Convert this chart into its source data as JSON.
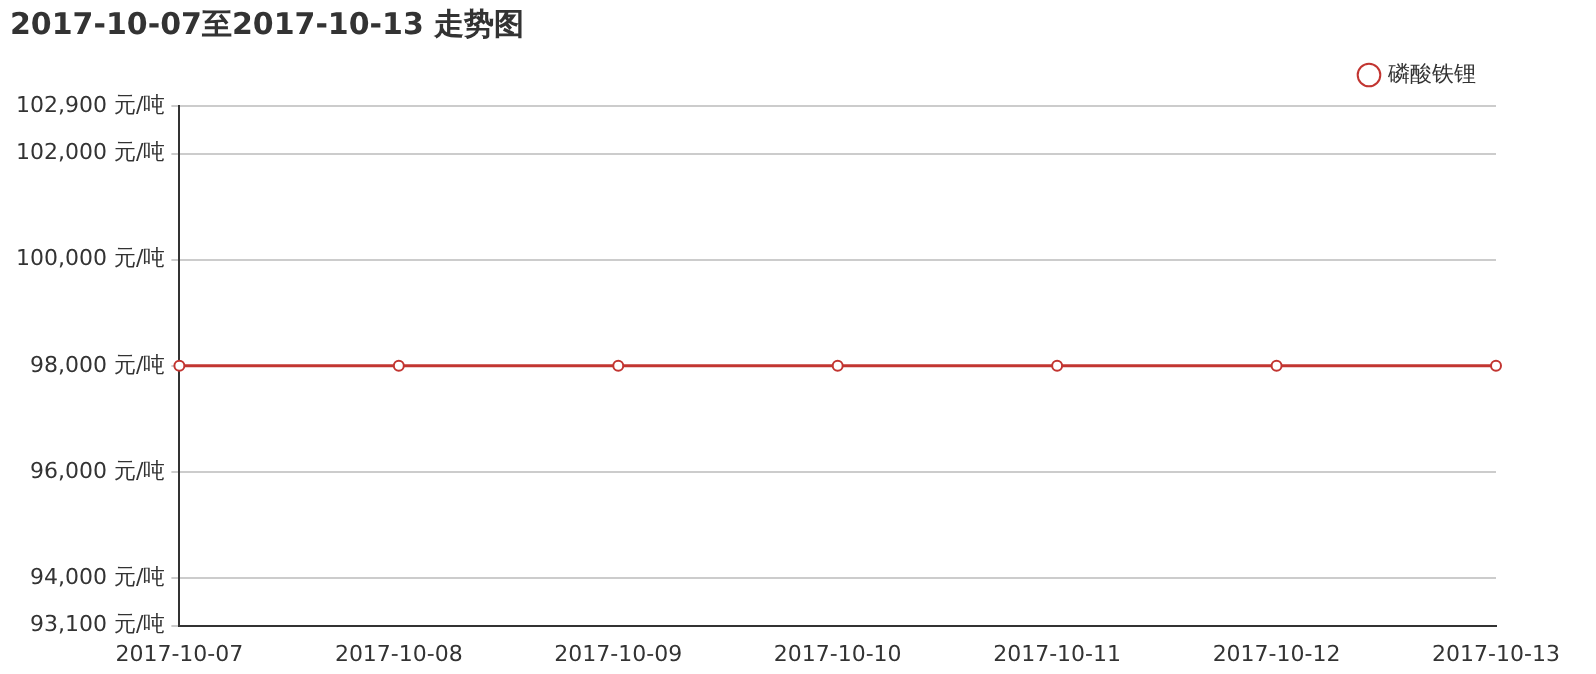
{
  "chart_data": {
    "type": "line",
    "title": "2017-10-07至2017-10-13 走势图",
    "categories": [
      "2017-10-07",
      "2017-10-08",
      "2017-10-09",
      "2017-10-10",
      "2017-10-11",
      "2017-10-12",
      "2017-10-13"
    ],
    "series": [
      {
        "name": "磷酸铁锂",
        "color": "#c23531",
        "values": [
          98000,
          98000,
          98000,
          98000,
          98000,
          98000,
          98000
        ]
      }
    ],
    "ylim": [
      93100,
      102900
    ],
    "yticks": [
      {
        "value": 93100,
        "label": "93,100 元/吨"
      },
      {
        "value": 94000,
        "label": "94,000 元/吨"
      },
      {
        "value": 96000,
        "label": "96,000 元/吨"
      },
      {
        "value": 98000,
        "label": "98,000 元/吨"
      },
      {
        "value": 100000,
        "label": "100,000 元/吨"
      },
      {
        "value": 102000,
        "label": "102,000 元/吨"
      },
      {
        "value": 102900,
        "label": "102,900 元/吨"
      }
    ],
    "grid": "y",
    "legend": "top right",
    "marker": "circle",
    "line_style": "solid"
  }
}
